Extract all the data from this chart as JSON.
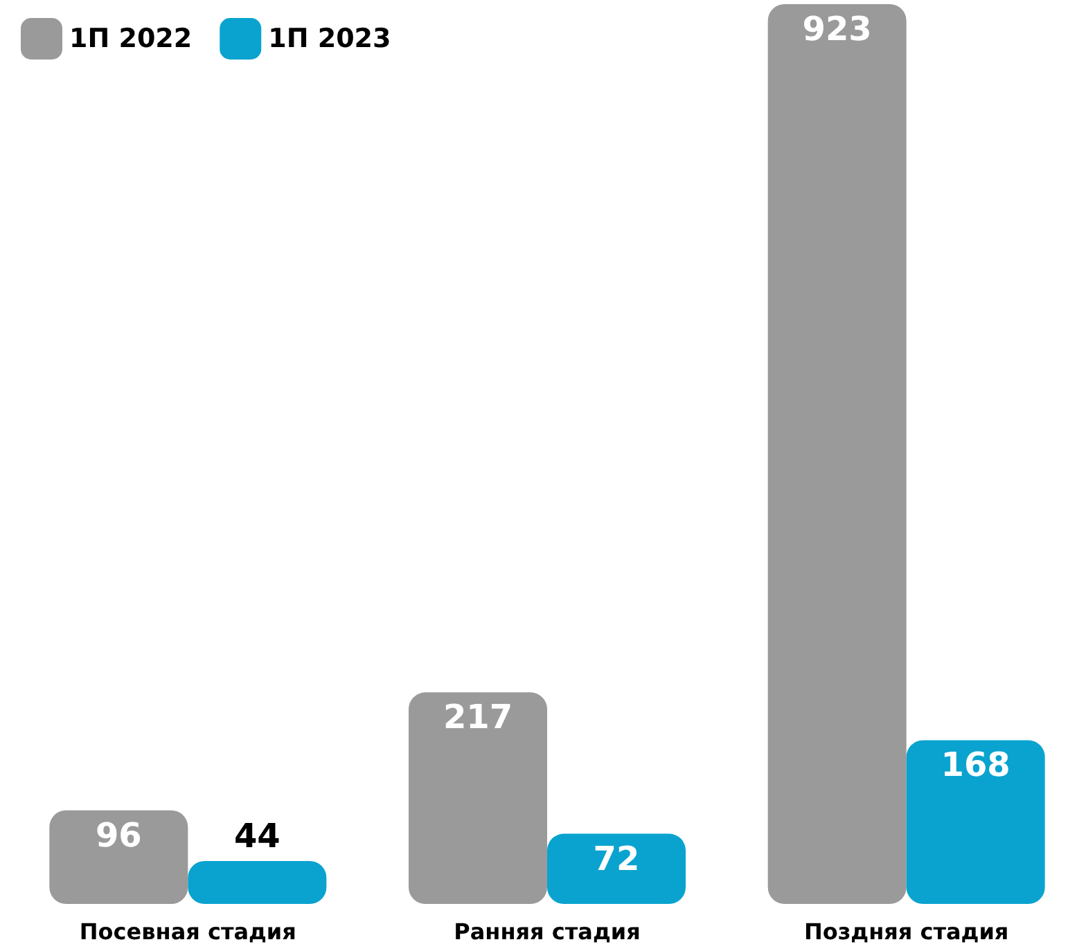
{
  "chart_data": {
    "type": "bar",
    "categories": [
      "Посевная стадия",
      "Ранняя стадия",
      "Поздняя стадия"
    ],
    "series": [
      {
        "name": "1П 2022",
        "color": "#9a9a9a",
        "values": [
          96,
          217,
          923
        ]
      },
      {
        "name": "1П 2023",
        "color": "#0aa3cf",
        "values": [
          44,
          72,
          168
        ]
      }
    ],
    "data_labels": true,
    "legend": "top left"
  }
}
